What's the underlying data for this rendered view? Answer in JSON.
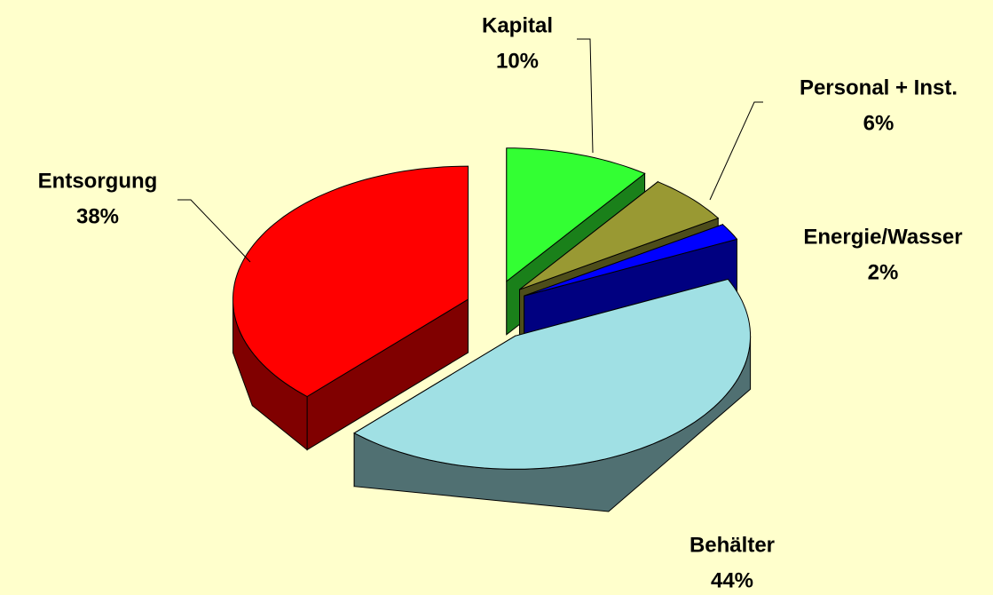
{
  "chart_data": {
    "type": "pie",
    "categories": [
      "Kapital",
      "Personal + Inst.",
      "Energie/Wasser",
      "Behälter",
      "Entsorgung"
    ],
    "values": [
      10,
      6,
      2,
      44,
      38
    ],
    "value_labels": [
      "10%",
      "6%",
      "2%",
      "44%",
      "38%"
    ],
    "colors": [
      "#33ff33",
      "#999933",
      "#0000ff",
      "#a0e0e4",
      "#ff0000"
    ]
  }
}
